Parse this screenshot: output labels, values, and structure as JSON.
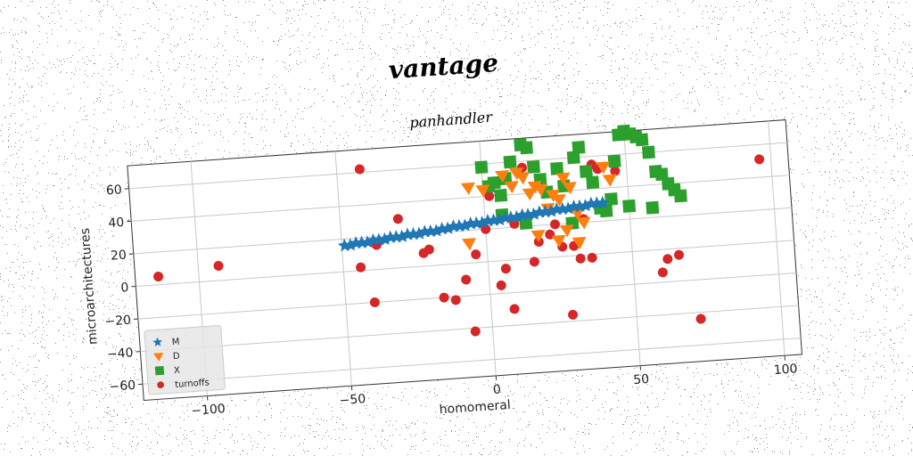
{
  "chart_data": {
    "type": "scatter",
    "title": "vantage",
    "subtitle": "panhandler",
    "xlabel": "homomeral",
    "ylabel": "microarchitectures",
    "xlim": [
      -122,
      106
    ],
    "ylim": [
      -70,
      74
    ],
    "xticks": [
      -100,
      -50,
      0,
      50,
      100
    ],
    "yticks": [
      -60,
      -40,
      -20,
      0,
      20,
      40,
      60
    ],
    "grid": true,
    "legend_position": "bottom-left",
    "series": [
      {
        "name": "M",
        "marker": "star",
        "color": "#1f77b4",
        "points": [
          [
            -49,
            16
          ],
          [
            -47,
            16
          ],
          [
            -45,
            17
          ],
          [
            -43,
            17
          ],
          [
            -41,
            17
          ],
          [
            -39,
            18
          ],
          [
            -37,
            18
          ],
          [
            -35,
            18
          ],
          [
            -33,
            19
          ],
          [
            -31,
            19
          ],
          [
            -29,
            19
          ],
          [
            -27,
            20
          ],
          [
            -25,
            20
          ],
          [
            -23,
            20
          ],
          [
            -21,
            21
          ],
          [
            -19,
            21
          ],
          [
            -17,
            21
          ],
          [
            -15,
            22
          ],
          [
            -13,
            22
          ],
          [
            -11,
            23
          ],
          [
            -9,
            23
          ],
          [
            -7,
            23
          ],
          [
            -5,
            24
          ],
          [
            -3,
            24
          ],
          [
            -1,
            24
          ],
          [
            1,
            25
          ],
          [
            3,
            25
          ],
          [
            5,
            25
          ],
          [
            7,
            26
          ],
          [
            9,
            26
          ],
          [
            11,
            26
          ],
          [
            13,
            27
          ],
          [
            15,
            27
          ],
          [
            17,
            27
          ],
          [
            19,
            28
          ],
          [
            21,
            28
          ],
          [
            23,
            28
          ],
          [
            25,
            29
          ],
          [
            27,
            29
          ],
          [
            29,
            29
          ],
          [
            31,
            30
          ],
          [
            33,
            30
          ],
          [
            35,
            30
          ],
          [
            37,
            31
          ],
          [
            39,
            31
          ],
          [
            41,
            31
          ]
        ]
      },
      {
        "name": "D",
        "marker": "triangle-down",
        "color": "#ff7f0e",
        "points": [
          [
            -5,
            46
          ],
          [
            0,
            44
          ],
          [
            7,
            52
          ],
          [
            10,
            45
          ],
          [
            12,
            53
          ],
          [
            14,
            50
          ],
          [
            16,
            40
          ],
          [
            18,
            44
          ],
          [
            20,
            42
          ],
          [
            22,
            30
          ],
          [
            24,
            38
          ],
          [
            26,
            35
          ],
          [
            28,
            48
          ],
          [
            30,
            42
          ],
          [
            32,
            26
          ],
          [
            34,
            20
          ],
          [
            28,
            16
          ],
          [
            25,
            10
          ],
          [
            32,
            8
          ],
          [
            18,
            14
          ],
          [
            -6,
            12
          ],
          [
            42,
            53
          ],
          [
            44,
            45
          ]
        ]
      },
      {
        "name": "X",
        "marker": "square",
        "color": "#2ca02c",
        "points": [
          [
            0,
            58
          ],
          [
            2,
            46
          ],
          [
            4,
            48
          ],
          [
            6,
            40
          ],
          [
            8,
            50
          ],
          [
            10,
            60
          ],
          [
            14,
            70
          ],
          [
            16,
            68
          ],
          [
            18,
            56
          ],
          [
            20,
            48
          ],
          [
            22,
            40
          ],
          [
            26,
            54
          ],
          [
            28,
            43
          ],
          [
            32,
            60
          ],
          [
            34,
            66
          ],
          [
            36,
            51
          ],
          [
            38,
            44
          ],
          [
            40,
            28
          ],
          [
            42,
            26
          ],
          [
            44,
            33
          ],
          [
            46,
            56
          ],
          [
            48,
            72
          ],
          [
            50,
            74
          ],
          [
            52,
            72
          ],
          [
            54,
            70
          ],
          [
            56,
            68
          ],
          [
            58,
            60
          ],
          [
            60,
            48
          ],
          [
            62,
            46
          ],
          [
            64,
            40
          ],
          [
            66,
            36
          ],
          [
            68,
            32
          ],
          [
            58,
            26
          ],
          [
            50,
            28
          ],
          [
            30,
            20
          ],
          [
            14,
            22
          ],
          [
            6,
            28
          ]
        ]
      },
      {
        "name": "turnoffs",
        "marker": "circle",
        "color": "#d62728",
        "points": [
          [
            -114,
            5
          ],
          [
            -93,
            9
          ],
          [
            -42,
            62
          ],
          [
            -38,
            15
          ],
          [
            -44,
            2
          ],
          [
            -40,
            -20
          ],
          [
            -30,
            30
          ],
          [
            -22,
            8
          ],
          [
            -20,
            10
          ],
          [
            -16,
            -20
          ],
          [
            -12,
            -22
          ],
          [
            -8,
            -10
          ],
          [
            -6,
            -42
          ],
          [
            -4,
            5
          ],
          [
            0,
            20
          ],
          [
            2,
            40
          ],
          [
            4,
            -15
          ],
          [
            6,
            -5
          ],
          [
            8,
            -30
          ],
          [
            10,
            22
          ],
          [
            14,
            56
          ],
          [
            16,
            -2
          ],
          [
            18,
            10
          ],
          [
            22,
            14
          ],
          [
            24,
            20
          ],
          [
            26,
            6
          ],
          [
            28,
            -36
          ],
          [
            30,
            6
          ],
          [
            32,
            -2
          ],
          [
            34,
            22
          ],
          [
            36,
            -2
          ],
          [
            40,
            52
          ],
          [
            46,
            50
          ],
          [
            60,
            -14
          ],
          [
            62,
            -6
          ],
          [
            66,
            -4
          ],
          [
            72,
            -44
          ],
          [
            96,
            51
          ],
          [
            38,
            55
          ]
        ]
      }
    ]
  }
}
